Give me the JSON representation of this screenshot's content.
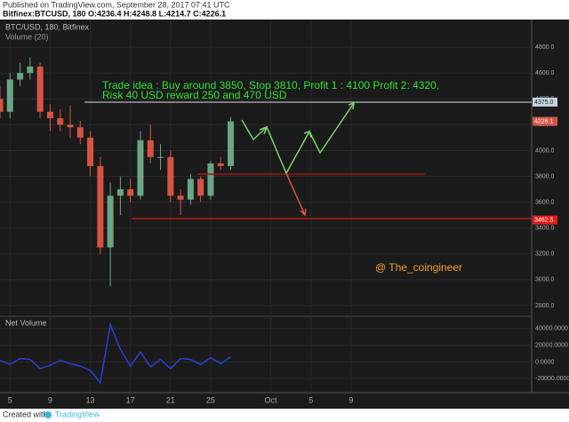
{
  "header": {
    "published": "Published on TradingView.com, September 28, 2017 07:41 UTC",
    "symbol_line": "Bitfinex:BTCUSD, 180  O:4236.4 H:4248.8 L:4214.7 C:4226.1"
  },
  "footer": {
    "created": "Created with",
    "brand": "TradingView"
  },
  "chart_data": {
    "type": "candlestick",
    "legend": "BTC/USD, 180, Bitfinex",
    "volume_label": "Volume (20)",
    "annotation_lines": [
      "Trade idea : Buy around 3850, Stop 3810, Profit 1 : 4100 Profit 2: 4320,",
      "Risk 40 USD reward 250 and 470 USD"
    ],
    "watermark": "@ The_coingineer",
    "x": [
      "2017-09-04",
      "2017-09-05",
      "2017-09-06",
      "2017-09-07",
      "2017-09-08",
      "2017-09-09",
      "2017-09-10",
      "2017-09-11",
      "2017-09-12",
      "2017-09-13",
      "2017-09-14",
      "2017-09-15",
      "2017-09-16",
      "2017-09-17",
      "2017-09-18",
      "2017-09-19",
      "2017-09-20",
      "2017-09-21",
      "2017-09-22",
      "2017-09-23",
      "2017-09-24",
      "2017-09-25",
      "2017-09-26",
      "2017-09-27"
    ],
    "open": [
      4400,
      4300,
      4550,
      4600,
      4650,
      4300,
      4250,
      4200,
      4180,
      4100,
      3880,
      3250,
      3650,
      3700,
      3650,
      4080,
      3950,
      3950,
      3650,
      3620,
      3780,
      3650,
      3900,
      3880
    ],
    "high": [
      4500,
      4600,
      4680,
      4720,
      4680,
      4360,
      4320,
      4350,
      4230,
      4150,
      3950,
      3750,
      3800,
      3780,
      4150,
      4200,
      4050,
      4000,
      3700,
      3820,
      3800,
      3920,
      3950,
      4260
    ],
    "low": [
      4250,
      4250,
      4500,
      4550,
      4250,
      4150,
      4150,
      4100,
      4050,
      3800,
      3200,
      2950,
      3500,
      3600,
      3620,
      3900,
      3850,
      3600,
      3500,
      3580,
      3600,
      3620,
      3850,
      3850
    ],
    "close": [
      4300,
      4550,
      4600,
      4650,
      4300,
      4250,
      4200,
      4180,
      4100,
      3880,
      3250,
      3650,
      3700,
      3650,
      4080,
      3950,
      3950,
      3650,
      3620,
      3780,
      3650,
      3900,
      3880,
      4226.1
    ],
    "up_color": "#6ba583",
    "down_color": "#d75442",
    "xlim": [
      "2017-09-04",
      "2017-10-27"
    ],
    "xticks": [
      {
        "value": "2017-09-05",
        "label": "5"
      },
      {
        "value": "2017-09-09",
        "label": "9"
      },
      {
        "value": "2017-09-13",
        "label": "13"
      },
      {
        "value": "2017-09-17",
        "label": "17"
      },
      {
        "value": "2017-09-21",
        "label": "21"
      },
      {
        "value": "2017-09-25",
        "label": "25"
      },
      {
        "value": "2017-10-01",
        "label": "Oct"
      },
      {
        "value": "2017-10-05",
        "label": "5"
      },
      {
        "value": "2017-10-09",
        "label": "9"
      }
    ],
    "ylim": [
      2724,
      5014
    ],
    "yticks": [
      {
        "value": 2800,
        "label": "2800.0"
      },
      {
        "value": 3000,
        "label": "3000.0"
      },
      {
        "value": 3200,
        "label": "3200.0"
      },
      {
        "value": 3400,
        "label": "3400.0"
      },
      {
        "value": 3600,
        "label": "3600.0"
      },
      {
        "value": 3800,
        "label": "3800.0"
      },
      {
        "value": 4000,
        "label": "4000.0"
      },
      {
        "value": 4200,
        "label": "4200.0"
      },
      {
        "value": 4400,
        "label": "4400.0"
      },
      {
        "value": 4600,
        "label": "4600.0"
      },
      {
        "value": 4800,
        "label": "4800.0"
      }
    ],
    "price_tags": [
      {
        "value": 4375,
        "label": "4375.0",
        "color": "#c8d3e0"
      },
      {
        "value": 4226.1,
        "label": "4226.1",
        "color": "#d75442"
      },
      {
        "value": 3462.5,
        "label": "3462.5",
        "color": "#e0201b"
      }
    ],
    "net_volume": {
      "name": "Net Volume",
      "color": "#2b3fd6",
      "values": [
        2000,
        -3000,
        4000,
        3000,
        -8000,
        -4000,
        2000,
        -2000,
        -5000,
        -10000,
        -25000,
        45000,
        15000,
        -5000,
        12000,
        -6000,
        3000,
        -8000,
        4000,
        3000,
        -3000,
        5000,
        -2000,
        6000
      ],
      "ylim": [
        -34700,
        52600
      ],
      "yticks": [
        {
          "value": -20000,
          "label": "-20000.0000"
        },
        {
          "value": 0,
          "label": "0.0000"
        },
        {
          "value": 20000,
          "label": "20000.0000"
        },
        {
          "value": 40000,
          "label": "40000.0000"
        }
      ]
    },
    "grid": true
  }
}
